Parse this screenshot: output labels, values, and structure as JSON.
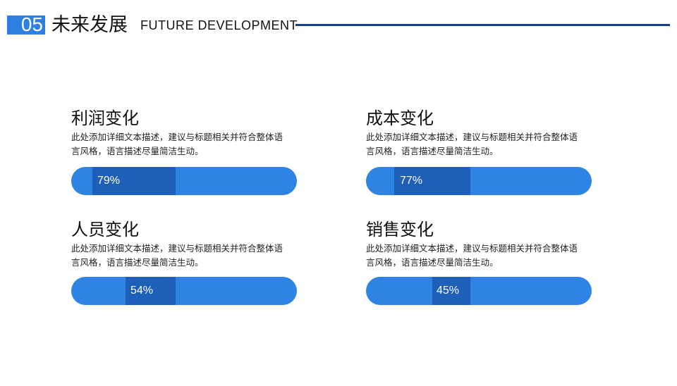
{
  "header": {
    "number": "05",
    "title_cn": "未来发展",
    "title_en": "FUTURE DEVELOPMENT"
  },
  "cards": [
    {
      "title": "利润变化",
      "desc_line1": "此处添加详细文本描述，建议与标题相关并符合整体语",
      "desc_line2": "言风格，语言描述尽量简洁生动。",
      "percent_label": "79%",
      "value": 79
    },
    {
      "title": "成本变化",
      "desc_line1": "此处添加详细文本描述，建议与标题相关并符合整体语",
      "desc_line2": "言风格，语言描述尽量简洁生动。",
      "percent_label": "77%",
      "value": 77
    },
    {
      "title": "人员变化",
      "desc_line1": "此处添加详细文本描述，建议与标题相关并符合整体语",
      "desc_line2": "言风格，语言描述尽量简洁生动。",
      "percent_label": "54%",
      "value": 54
    },
    {
      "title": "销售变化",
      "desc_line1": "此处添加详细文本描述，建议与标题相关并符合整体语",
      "desc_line2": "言风格，语言描述尽量简洁生动。",
      "percent_label": "45%",
      "value": 45
    }
  ],
  "colors": {
    "accent": "#2d7fe0",
    "bar": "#2f84e3",
    "bar_segment": "#1e5fb8",
    "rule": "#1a3d8f"
  }
}
